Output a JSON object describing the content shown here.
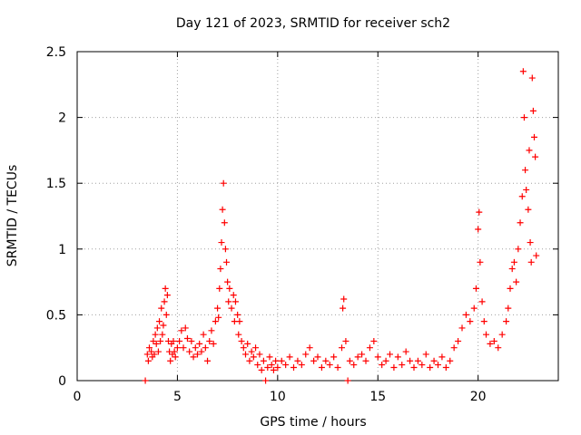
{
  "chart_data": {
    "type": "scatter",
    "title": "Day 121 of 2023, SRMTID for receiver sch2",
    "xlabel": "GPS time / hours",
    "ylabel": "SRMTID / TECUs",
    "xlim": [
      0,
      24
    ],
    "ylim": [
      0,
      2.5
    ],
    "xticks": [
      0,
      5,
      10,
      15,
      20
    ],
    "yticks": [
      0,
      0.5,
      1,
      1.5,
      2,
      2.5
    ],
    "xtick_labels": [
      "0",
      "5",
      "10",
      "15",
      "20"
    ],
    "ytick_labels": [
      "0",
      "0.5",
      "1",
      "1.5",
      "2",
      "2.5"
    ],
    "grid": true,
    "marker": "+",
    "color": "#ff0000",
    "series": [
      {
        "name": "SRMTID",
        "points": [
          [
            3.4,
            0.0
          ],
          [
            3.5,
            0.2
          ],
          [
            3.55,
            0.15
          ],
          [
            3.6,
            0.25
          ],
          [
            3.7,
            0.22
          ],
          [
            3.75,
            0.18
          ],
          [
            3.8,
            0.3
          ],
          [
            3.85,
            0.2
          ],
          [
            3.9,
            0.35
          ],
          [
            3.95,
            0.28
          ],
          [
            4.0,
            0.4
          ],
          [
            4.05,
            0.22
          ],
          [
            4.1,
            0.45
          ],
          [
            4.15,
            0.3
          ],
          [
            4.2,
            0.55
          ],
          [
            4.25,
            0.35
          ],
          [
            4.3,
            0.42
          ],
          [
            4.35,
            0.6
          ],
          [
            4.4,
            0.7
          ],
          [
            4.45,
            0.5
          ],
          [
            4.5,
            0.65
          ],
          [
            4.55,
            0.3
          ],
          [
            4.6,
            0.22
          ],
          [
            4.65,
            0.15
          ],
          [
            4.7,
            0.28
          ],
          [
            4.75,
            0.2
          ],
          [
            4.8,
            0.3
          ],
          [
            4.85,
            0.22
          ],
          [
            4.9,
            0.18
          ],
          [
            5.0,
            0.25
          ],
          [
            5.1,
            0.3
          ],
          [
            5.2,
            0.38
          ],
          [
            5.3,
            0.25
          ],
          [
            5.4,
            0.4
          ],
          [
            5.5,
            0.32
          ],
          [
            5.6,
            0.22
          ],
          [
            5.7,
            0.3
          ],
          [
            5.8,
            0.18
          ],
          [
            5.9,
            0.25
          ],
          [
            6.0,
            0.2
          ],
          [
            6.1,
            0.28
          ],
          [
            6.2,
            0.22
          ],
          [
            6.3,
            0.35
          ],
          [
            6.4,
            0.25
          ],
          [
            6.5,
            0.15
          ],
          [
            6.6,
            0.3
          ],
          [
            6.7,
            0.38
          ],
          [
            6.8,
            0.28
          ],
          [
            6.9,
            0.45
          ],
          [
            7.0,
            0.55
          ],
          [
            7.05,
            0.48
          ],
          [
            7.1,
            0.7
          ],
          [
            7.15,
            0.85
          ],
          [
            7.2,
            1.05
          ],
          [
            7.25,
            1.3
          ],
          [
            7.3,
            1.5
          ],
          [
            7.35,
            1.2
          ],
          [
            7.4,
            1.0
          ],
          [
            7.45,
            0.9
          ],
          [
            7.5,
            0.75
          ],
          [
            7.55,
            0.6
          ],
          [
            7.6,
            0.7
          ],
          [
            7.7,
            0.55
          ],
          [
            7.8,
            0.65
          ],
          [
            7.85,
            0.45
          ],
          [
            7.9,
            0.6
          ],
          [
            8.0,
            0.5
          ],
          [
            8.05,
            0.35
          ],
          [
            8.1,
            0.45
          ],
          [
            8.2,
            0.3
          ],
          [
            8.3,
            0.25
          ],
          [
            8.4,
            0.2
          ],
          [
            8.5,
            0.28
          ],
          [
            8.6,
            0.15
          ],
          [
            8.7,
            0.22
          ],
          [
            8.8,
            0.18
          ],
          [
            8.9,
            0.25
          ],
          [
            9.0,
            0.12
          ],
          [
            9.1,
            0.2
          ],
          [
            9.2,
            0.08
          ],
          [
            9.3,
            0.15
          ],
          [
            9.4,
            0.0
          ],
          [
            9.5,
            0.1
          ],
          [
            9.6,
            0.18
          ],
          [
            9.7,
            0.12
          ],
          [
            9.8,
            0.08
          ],
          [
            9.9,
            0.15
          ],
          [
            10.0,
            0.1
          ],
          [
            10.2,
            0.15
          ],
          [
            10.4,
            0.12
          ],
          [
            10.6,
            0.18
          ],
          [
            10.8,
            0.1
          ],
          [
            11.0,
            0.15
          ],
          [
            11.2,
            0.12
          ],
          [
            11.4,
            0.2
          ],
          [
            11.6,
            0.25
          ],
          [
            11.8,
            0.15
          ],
          [
            12.0,
            0.18
          ],
          [
            12.2,
            0.1
          ],
          [
            12.4,
            0.15
          ],
          [
            12.6,
            0.12
          ],
          [
            12.8,
            0.18
          ],
          [
            13.0,
            0.1
          ],
          [
            13.2,
            0.25
          ],
          [
            13.25,
            0.55
          ],
          [
            13.3,
            0.62
          ],
          [
            13.4,
            0.3
          ],
          [
            13.5,
            0.0
          ],
          [
            13.6,
            0.15
          ],
          [
            13.8,
            0.12
          ],
          [
            14.0,
            0.18
          ],
          [
            14.2,
            0.2
          ],
          [
            14.4,
            0.15
          ],
          [
            14.6,
            0.25
          ],
          [
            14.8,
            0.3
          ],
          [
            15.0,
            0.18
          ],
          [
            15.2,
            0.12
          ],
          [
            15.4,
            0.15
          ],
          [
            15.6,
            0.2
          ],
          [
            15.8,
            0.1
          ],
          [
            16.0,
            0.18
          ],
          [
            16.2,
            0.12
          ],
          [
            16.4,
            0.22
          ],
          [
            16.6,
            0.15
          ],
          [
            16.8,
            0.1
          ],
          [
            17.0,
            0.15
          ],
          [
            17.2,
            0.12
          ],
          [
            17.4,
            0.2
          ],
          [
            17.6,
            0.1
          ],
          [
            17.8,
            0.15
          ],
          [
            18.0,
            0.12
          ],
          [
            18.2,
            0.18
          ],
          [
            18.4,
            0.1
          ],
          [
            18.6,
            0.15
          ],
          [
            18.8,
            0.25
          ],
          [
            19.0,
            0.3
          ],
          [
            19.2,
            0.4
          ],
          [
            19.4,
            0.5
          ],
          [
            19.6,
            0.45
          ],
          [
            19.8,
            0.55
          ],
          [
            19.9,
            0.7
          ],
          [
            20.0,
            1.15
          ],
          [
            20.05,
            1.28
          ],
          [
            20.1,
            0.9
          ],
          [
            20.2,
            0.6
          ],
          [
            20.3,
            0.45
          ],
          [
            20.4,
            0.35
          ],
          [
            20.6,
            0.28
          ],
          [
            20.8,
            0.3
          ],
          [
            21.0,
            0.25
          ],
          [
            21.2,
            0.35
          ],
          [
            21.4,
            0.45
          ],
          [
            21.5,
            0.55
          ],
          [
            21.6,
            0.7
          ],
          [
            21.7,
            0.85
          ],
          [
            21.8,
            0.9
          ],
          [
            21.9,
            0.75
          ],
          [
            22.0,
            1.0
          ],
          [
            22.1,
            1.2
          ],
          [
            22.2,
            1.4
          ],
          [
            22.25,
            2.35
          ],
          [
            22.3,
            2.0
          ],
          [
            22.35,
            1.6
          ],
          [
            22.4,
            1.45
          ],
          [
            22.5,
            1.3
          ],
          [
            22.55,
            1.75
          ],
          [
            22.6,
            1.05
          ],
          [
            22.65,
            0.9
          ],
          [
            22.7,
            2.3
          ],
          [
            22.75,
            2.05
          ],
          [
            22.8,
            1.85
          ],
          [
            22.85,
            1.7
          ],
          [
            22.9,
            0.95
          ]
        ]
      }
    ]
  }
}
